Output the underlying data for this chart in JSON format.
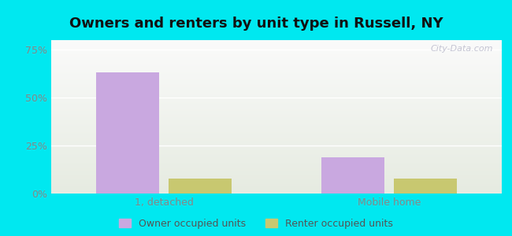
{
  "title": "Owners and renters by unit type in Russell, NY",
  "categories": [
    "1, detached",
    "Mobile home"
  ],
  "owner_values": [
    63,
    19
  ],
  "renter_values": [
    8,
    8
  ],
  "owner_color": "#c9a8e0",
  "renter_color": "#c8c870",
  "yticks": [
    0,
    25,
    50,
    75
  ],
  "ytick_labels": [
    "0%",
    "25%",
    "50%",
    "75%"
  ],
  "ylim": [
    0,
    80
  ],
  "bar_width": 0.28,
  "outer_bg": "#00e8f0",
  "title_fontsize": 13,
  "legend_label_owner": "Owner occupied units",
  "legend_label_renter": "Renter occupied units",
  "watermark": "City-Data.com",
  "grid_color": "#ffffff",
  "tick_color": "#888888"
}
